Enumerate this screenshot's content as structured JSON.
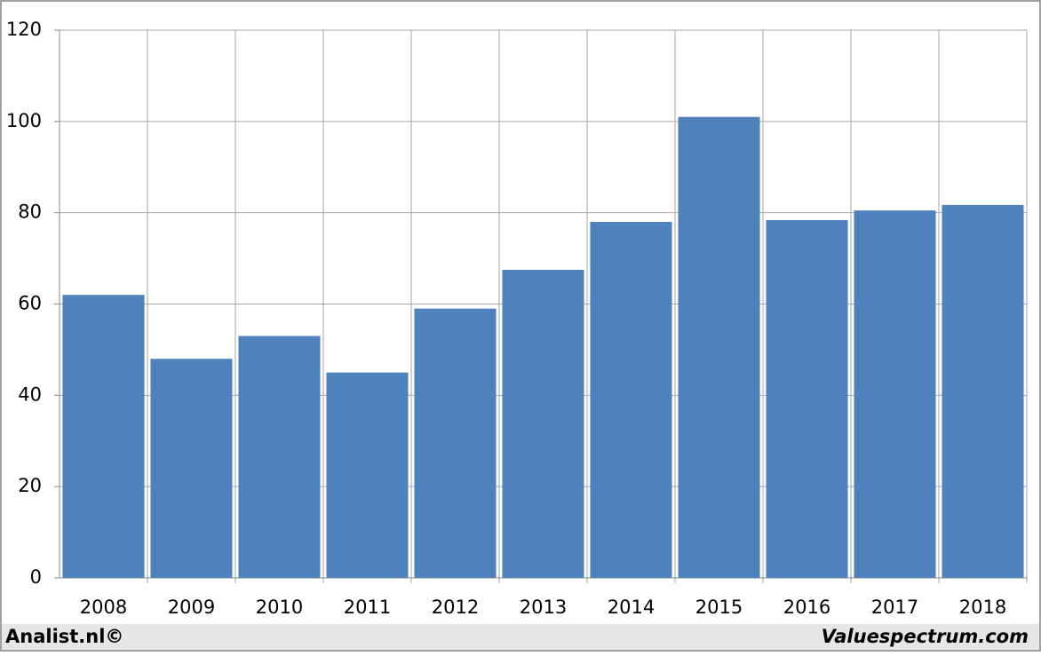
{
  "chart_data": {
    "type": "bar",
    "categories": [
      "2008",
      "2009",
      "2010",
      "2011",
      "2012",
      "2013",
      "2014",
      "2015",
      "2016",
      "2017",
      "2018"
    ],
    "values": [
      62,
      48,
      53,
      45,
      59,
      67.5,
      78,
      101,
      78.4,
      80.5,
      81.7
    ],
    "color": "#4f81bd",
    "ylim": [
      0,
      120
    ],
    "yticks": [
      0,
      20,
      40,
      60,
      80,
      100,
      120
    ],
    "grid": true
  },
  "footer": {
    "left": "Analist.nl©",
    "right": "Valuespectrum.com"
  }
}
